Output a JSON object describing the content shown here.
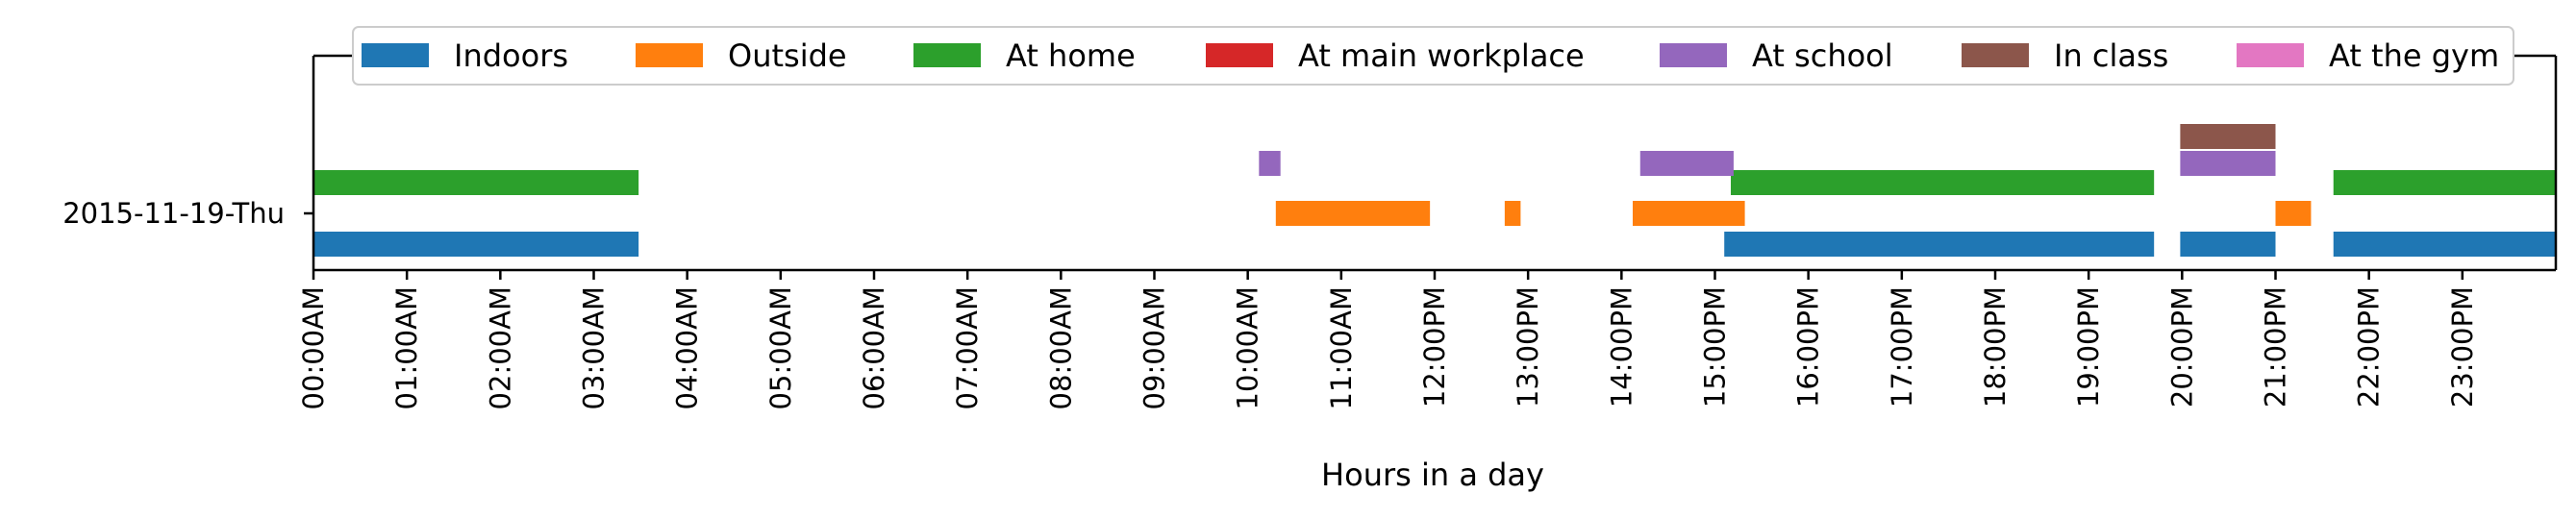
{
  "chart_data": {
    "type": "timeline",
    "xlabel": "Hours in a day",
    "ylabel": "",
    "xlim_hours": [
      0,
      24
    ],
    "y_category": "2015-11-19-Thu",
    "x_ticks": [
      "00:00AM",
      "01:00AM",
      "02:00AM",
      "03:00AM",
      "04:00AM",
      "05:00AM",
      "06:00AM",
      "07:00AM",
      "08:00AM",
      "09:00AM",
      "10:00AM",
      "11:00AM",
      "12:00PM",
      "13:00PM",
      "14:00PM",
      "15:00PM",
      "16:00PM",
      "17:00PM",
      "18:00PM",
      "19:00PM",
      "20:00PM",
      "21:00PM",
      "22:00PM",
      "23:00PM"
    ],
    "legend_position": "top",
    "grid": false,
    "series": [
      {
        "name": "Indoors",
        "color": "#1f77b4",
        "level": 0,
        "intervals": [
          [
            0.0,
            3.48
          ],
          [
            15.1,
            19.7
          ],
          [
            19.98,
            21.0
          ],
          [
            21.62,
            24.0
          ]
        ]
      },
      {
        "name": "Outside",
        "color": "#ff7f0e",
        "level": 1,
        "intervals": [
          [
            10.3,
            11.95
          ],
          [
            12.75,
            12.92
          ],
          [
            14.12,
            15.32
          ],
          [
            21.0,
            21.38
          ]
        ]
      },
      {
        "name": "At home",
        "color": "#2ca02c",
        "level": 2,
        "intervals": [
          [
            0.0,
            3.48
          ],
          [
            15.17,
            19.7
          ],
          [
            21.62,
            24.0
          ]
        ]
      },
      {
        "name": "At main workplace",
        "color": "#d62728",
        "level": 3,
        "intervals": []
      },
      {
        "name": "At school",
        "color": "#9467bd",
        "level": 3,
        "intervals": [
          [
            10.12,
            10.35
          ],
          [
            14.2,
            15.2
          ],
          [
            19.98,
            21.0
          ]
        ]
      },
      {
        "name": "In class",
        "color": "#8c564b",
        "level": 4,
        "intervals": [
          [
            19.98,
            21.0
          ]
        ]
      },
      {
        "name": "At the gym",
        "color": "#e377c2",
        "level": 5,
        "intervals": []
      }
    ]
  }
}
